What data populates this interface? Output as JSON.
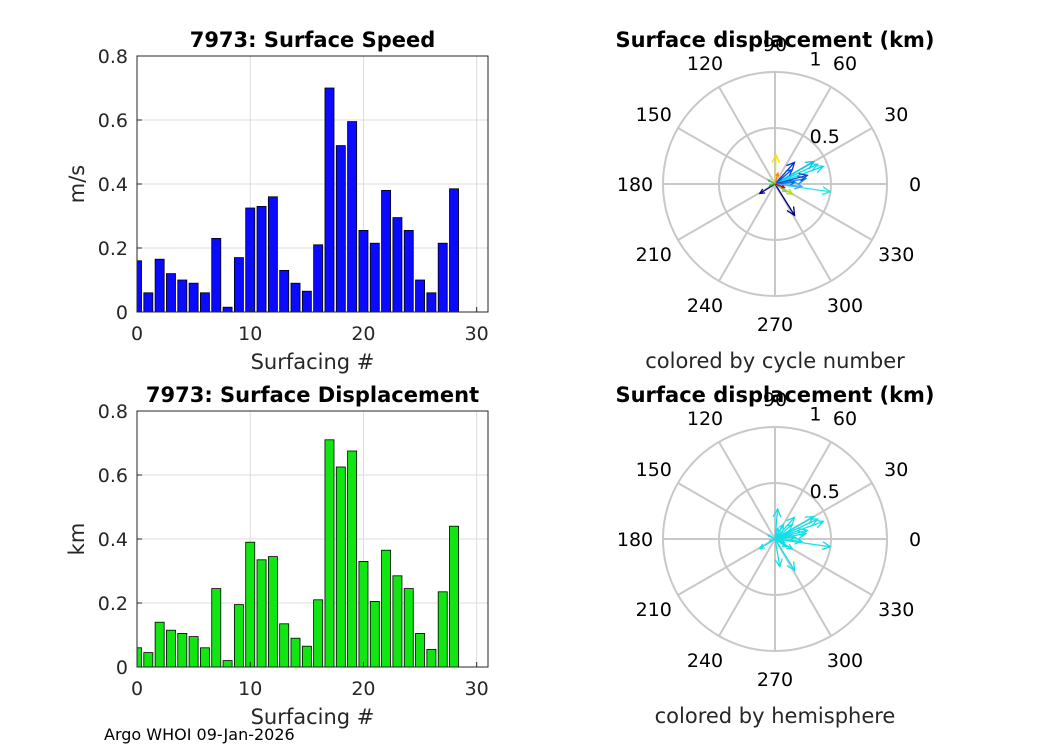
{
  "footer": "Argo WHOI 09-Jan-2026",
  "colors": {
    "speed_bar": "#0a0aff",
    "disp_bar": "#12e612",
    "grid": "#dcdcdc",
    "polar_grid": "#c8c8c8",
    "hemisphere_arrow": "#10e0e8"
  },
  "chart_data": [
    {
      "type": "bar",
      "title": "7973: Surface Speed",
      "xlabel": "Surfacing #",
      "ylabel": "m/s",
      "xlim": [
        0,
        31
      ],
      "ylim": [
        0,
        0.8
      ],
      "xticks": [
        "0",
        "10",
        "20",
        "30"
      ],
      "yticks": [
        "0",
        "0.2",
        "0.4",
        "0.6",
        "0.8"
      ],
      "x": [
        0,
        1,
        2,
        3,
        4,
        5,
        6,
        7,
        8,
        9,
        10,
        11,
        12,
        13,
        14,
        15,
        16,
        17,
        18,
        19,
        20,
        21,
        22,
        23,
        24,
        25,
        26,
        27,
        28
      ],
      "values": [
        0.16,
        0.06,
        0.165,
        0.12,
        0.1,
        0.09,
        0.06,
        0.23,
        0.015,
        0.17,
        0.325,
        0.33,
        0.36,
        0.13,
        0.09,
        0.065,
        0.21,
        0.7,
        0.52,
        0.595,
        0.255,
        0.215,
        0.38,
        0.295,
        0.255,
        0.1,
        0.06,
        0.215,
        0.385
      ]
    },
    {
      "type": "polar-arrows",
      "title": "Surface displacement (km)",
      "subtitle": "colored by cycle number",
      "rmax": 1,
      "radial_ticks": [
        "0.5",
        "1"
      ],
      "angle_ticks": [
        "0",
        "30",
        "60",
        "90",
        "120",
        "150",
        "180",
        "210",
        "240",
        "270",
        "300",
        "330"
      ],
      "arrows": [
        {
          "angle": 25,
          "r": 0.42,
          "color": "#00e0f0"
        },
        {
          "angle": 20,
          "r": 0.46,
          "color": "#10d8e8"
        },
        {
          "angle": 30,
          "r": 0.4,
          "color": "#00c8e0"
        },
        {
          "angle": -8,
          "r": 0.5,
          "color": "#20e8e0"
        },
        {
          "angle": 10,
          "r": 0.28,
          "color": "#0090ff"
        },
        {
          "angle": 48,
          "r": 0.26,
          "color": "#0030d0"
        },
        {
          "angle": 40,
          "r": 0.2,
          "color": "#0050ff"
        },
        {
          "angle": 5,
          "r": 0.18,
          "color": "#0070e0"
        },
        {
          "angle": 15,
          "r": 0.3,
          "color": "#2040c0"
        },
        {
          "angle": -5,
          "r": 0.24,
          "color": "#40a0ff"
        },
        {
          "angle": -58,
          "r": 0.33,
          "color": "#000080"
        },
        {
          "angle": -148,
          "r": 0.16,
          "color": "#0000a0"
        },
        {
          "angle": 88,
          "r": 0.26,
          "color": "#f0e000"
        },
        {
          "angle": -30,
          "r": 0.18,
          "color": "#b0e000"
        },
        {
          "angle": -35,
          "r": 0.12,
          "color": "#80d080"
        },
        {
          "angle": -20,
          "r": 0.09,
          "color": "#d00000"
        },
        {
          "angle": 150,
          "r": 0.07,
          "color": "#40c040"
        },
        {
          "angle": 75,
          "r": 0.1,
          "color": "#ff8000"
        },
        {
          "angle": 200,
          "r": 0.05,
          "color": "#20a020"
        }
      ]
    },
    {
      "type": "bar",
      "title": "7973: Surface Displacement",
      "xlabel": "Surfacing #",
      "ylabel": "km",
      "xlim": [
        0,
        31
      ],
      "ylim": [
        0,
        0.8
      ],
      "xticks": [
        "0",
        "10",
        "20",
        "30"
      ],
      "yticks": [
        "0",
        "0.2",
        "0.4",
        "0.6",
        "0.8"
      ],
      "x": [
        0,
        1,
        2,
        3,
        4,
        5,
        6,
        7,
        8,
        9,
        10,
        11,
        12,
        13,
        14,
        15,
        16,
        17,
        18,
        19,
        20,
        21,
        22,
        23,
        24,
        25,
        26,
        27,
        28
      ],
      "values": [
        0.06,
        0.045,
        0.14,
        0.115,
        0.105,
        0.095,
        0.06,
        0.245,
        0.02,
        0.195,
        0.39,
        0.335,
        0.345,
        0.135,
        0.09,
        0.065,
        0.21,
        0.71,
        0.625,
        0.675,
        0.33,
        0.205,
        0.365,
        0.285,
        0.245,
        0.105,
        0.055,
        0.235,
        0.44
      ]
    },
    {
      "type": "polar-arrows",
      "title": "Surface displacement (km)",
      "subtitle": "colored by hemisphere",
      "rmax": 1,
      "radial_ticks": [
        "0.5",
        "1"
      ],
      "angle_ticks": [
        "0",
        "30",
        "60",
        "90",
        "120",
        "150",
        "180",
        "210",
        "240",
        "270",
        "300",
        "330"
      ],
      "arrow_color": "#10e0e8",
      "arrows": [
        {
          "angle": 25,
          "r": 0.42
        },
        {
          "angle": 20,
          "r": 0.46
        },
        {
          "angle": 30,
          "r": 0.4
        },
        {
          "angle": -8,
          "r": 0.5
        },
        {
          "angle": 10,
          "r": 0.28
        },
        {
          "angle": 48,
          "r": 0.26
        },
        {
          "angle": 40,
          "r": 0.2
        },
        {
          "angle": 5,
          "r": 0.18
        },
        {
          "angle": 15,
          "r": 0.3
        },
        {
          "angle": -5,
          "r": 0.24
        },
        {
          "angle": -58,
          "r": 0.33
        },
        {
          "angle": -148,
          "r": 0.16
        },
        {
          "angle": 85,
          "r": 0.27
        },
        {
          "angle": -30,
          "r": 0.18
        },
        {
          "angle": -35,
          "r": 0.12
        },
        {
          "angle": -20,
          "r": 0.09
        },
        {
          "angle": 150,
          "r": 0.07
        },
        {
          "angle": 75,
          "r": 0.1
        },
        {
          "angle": 200,
          "r": 0.05
        },
        {
          "angle": -80,
          "r": 0.25
        },
        {
          "angle": 60,
          "r": 0.15
        }
      ]
    }
  ]
}
